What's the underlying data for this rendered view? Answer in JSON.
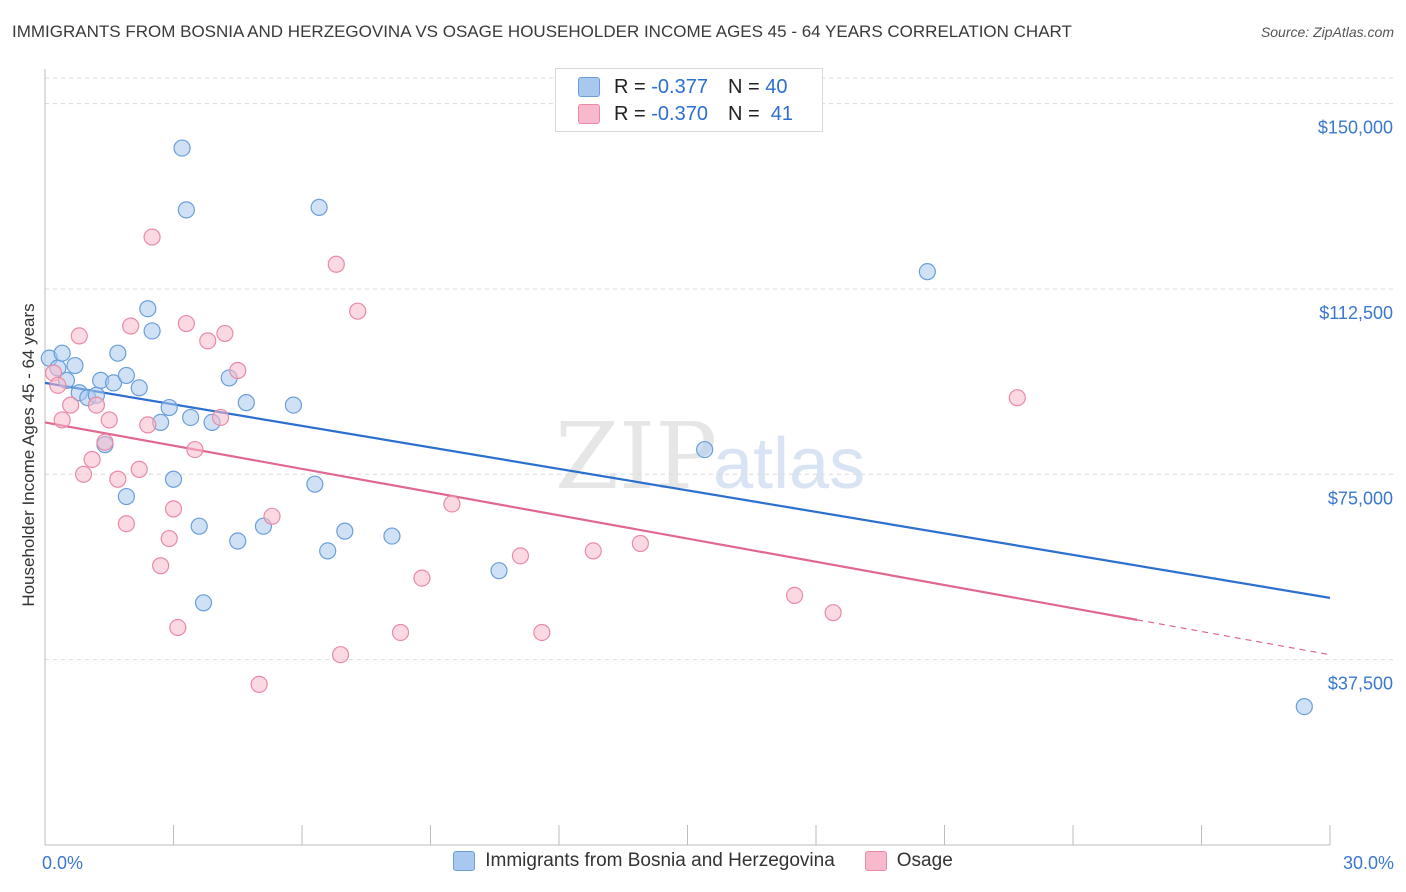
{
  "title": "IMMIGRANTS FROM BOSNIA AND HERZEGOVINA VS OSAGE HOUSEHOLDER INCOME AGES 45 - 64 YEARS CORRELATION CHART",
  "source": "Source: ZipAtlas.com",
  "watermark": {
    "zip": "ZIP",
    "atlas": "atlas"
  },
  "legend": {
    "r_label": "R =",
    "n_label": "N =",
    "series1": {
      "r": "-0.377",
      "n": "40"
    },
    "series2": {
      "r": "-0.370",
      "n": "41"
    }
  },
  "bottom_legend": {
    "series1": "Immigrants from Bosnia and Herzegovina",
    "series2": "Osage"
  },
  "colors": {
    "series1_fill": "#a9c8ef",
    "series1_stroke": "#6a9fd8",
    "series1_line": "#2d6fcf",
    "series2_fill": "#f7b9cb",
    "series2_stroke": "#e88aa6",
    "series2_line": "#e06890",
    "tick_label": "#3a78d0",
    "grid": "#dcdcdc"
  },
  "chart_data": {
    "type": "scatter",
    "title": "IMMIGRANTS FROM BOSNIA AND HERZEGOVINA VS OSAGE HOUSEHOLDER INCOME AGES 45 - 64 YEARS CORRELATION CHART",
    "xlabel": "",
    "ylabel": "Householder Income Ages 45 - 64 years",
    "xlim": [
      0,
      30
    ],
    "ylim": [
      0,
      157000
    ],
    "x_tick_labels": [
      "0.0%",
      "30.0%"
    ],
    "y_ticks": [
      37500,
      75000,
      112500,
      150000
    ],
    "y_tick_labels": [
      "$37,500",
      "$75,000",
      "$112,500",
      "$150,000"
    ],
    "legend_position": "top-center",
    "series": [
      {
        "name": "Immigrants from Bosnia and Herzegovina",
        "r": -0.377,
        "n": 40,
        "trend": {
          "x": [
            0,
            30
          ],
          "y": [
            93500,
            50000
          ],
          "dashed_from": null
        },
        "points": [
          [
            0.1,
            98500
          ],
          [
            0.3,
            96500
          ],
          [
            0.4,
            99500
          ],
          [
            0.5,
            94000
          ],
          [
            0.7,
            97000
          ],
          [
            0.8,
            91500
          ],
          [
            1.0,
            90500
          ],
          [
            1.2,
            91000
          ],
          [
            1.4,
            81000
          ],
          [
            1.3,
            94000
          ],
          [
            1.6,
            93500
          ],
          [
            1.7,
            99500
          ],
          [
            1.9,
            95000
          ],
          [
            2.2,
            92500
          ],
          [
            2.4,
            108500
          ],
          [
            2.5,
            104000
          ],
          [
            1.9,
            70500
          ],
          [
            2.7,
            85500
          ],
          [
            2.9,
            88500
          ],
          [
            3.0,
            74000
          ],
          [
            3.2,
            141000
          ],
          [
            3.3,
            128500
          ],
          [
            3.4,
            86500
          ],
          [
            3.6,
            64500
          ],
          [
            3.7,
            49000
          ],
          [
            3.9,
            85500
          ],
          [
            4.3,
            94500
          ],
          [
            4.5,
            61500
          ],
          [
            4.7,
            89500
          ],
          [
            5.1,
            64500
          ],
          [
            5.8,
            89000
          ],
          [
            6.3,
            73000
          ],
          [
            6.4,
            129000
          ],
          [
            6.6,
            59500
          ],
          [
            7.0,
            63500
          ],
          [
            8.1,
            62500
          ],
          [
            10.6,
            55500
          ],
          [
            15.4,
            80000
          ],
          [
            20.6,
            116000
          ],
          [
            29.4,
            28000
          ]
        ]
      },
      {
        "name": "Osage",
        "r": -0.37,
        "n": 41,
        "trend": {
          "x": [
            0,
            30
          ],
          "y": [
            85500,
            38500
          ],
          "dashed_from": 25.5
        },
        "points": [
          [
            0.2,
            95500
          ],
          [
            0.3,
            93000
          ],
          [
            0.4,
            86000
          ],
          [
            0.6,
            89000
          ],
          [
            0.8,
            103000
          ],
          [
            0.9,
            75000
          ],
          [
            1.1,
            78000
          ],
          [
            1.2,
            89000
          ],
          [
            1.4,
            81500
          ],
          [
            1.5,
            86000
          ],
          [
            1.7,
            74000
          ],
          [
            1.9,
            65000
          ],
          [
            2.0,
            105000
          ],
          [
            2.2,
            76000
          ],
          [
            2.4,
            85000
          ],
          [
            2.5,
            123000
          ],
          [
            2.7,
            56500
          ],
          [
            2.9,
            62000
          ],
          [
            3.0,
            68000
          ],
          [
            3.1,
            44000
          ],
          [
            3.3,
            105500
          ],
          [
            3.5,
            80000
          ],
          [
            3.8,
            102000
          ],
          [
            4.1,
            86500
          ],
          [
            4.2,
            103500
          ],
          [
            4.5,
            96000
          ],
          [
            5.0,
            32500
          ],
          [
            5.3,
            66500
          ],
          [
            6.8,
            117500
          ],
          [
            6.9,
            38500
          ],
          [
            7.3,
            108000
          ],
          [
            8.3,
            43000
          ],
          [
            8.8,
            54000
          ],
          [
            9.5,
            69000
          ],
          [
            11.1,
            58500
          ],
          [
            11.6,
            43000
          ],
          [
            12.8,
            59500
          ],
          [
            13.9,
            61000
          ],
          [
            17.5,
            50500
          ],
          [
            18.4,
            47000
          ],
          [
            22.7,
            90500
          ]
        ]
      }
    ]
  }
}
